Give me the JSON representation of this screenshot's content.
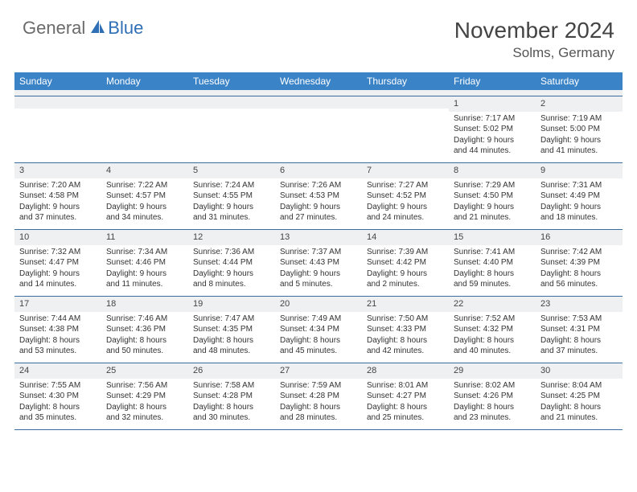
{
  "brand": {
    "general": "General",
    "blue": "Blue"
  },
  "title": "November 2024",
  "location": "Solms, Germany",
  "dow": [
    "Sunday",
    "Monday",
    "Tuesday",
    "Wednesday",
    "Thursday",
    "Friday",
    "Saturday"
  ],
  "colors": {
    "header_bar": "#3b83c7",
    "row_border": "#3b6ea0",
    "daynum_bg": "#eef0f2",
    "logo_gray": "#6a6a6a",
    "logo_blue": "#2e6fb5"
  },
  "weeks": [
    [
      null,
      null,
      null,
      null,
      null,
      {
        "n": "1",
        "sr": "Sunrise: 7:17 AM",
        "ss": "Sunset: 5:02 PM",
        "d1": "Daylight: 9 hours",
        "d2": "and 44 minutes."
      },
      {
        "n": "2",
        "sr": "Sunrise: 7:19 AM",
        "ss": "Sunset: 5:00 PM",
        "d1": "Daylight: 9 hours",
        "d2": "and 41 minutes."
      }
    ],
    [
      {
        "n": "3",
        "sr": "Sunrise: 7:20 AM",
        "ss": "Sunset: 4:58 PM",
        "d1": "Daylight: 9 hours",
        "d2": "and 37 minutes."
      },
      {
        "n": "4",
        "sr": "Sunrise: 7:22 AM",
        "ss": "Sunset: 4:57 PM",
        "d1": "Daylight: 9 hours",
        "d2": "and 34 minutes."
      },
      {
        "n": "5",
        "sr": "Sunrise: 7:24 AM",
        "ss": "Sunset: 4:55 PM",
        "d1": "Daylight: 9 hours",
        "d2": "and 31 minutes."
      },
      {
        "n": "6",
        "sr": "Sunrise: 7:26 AM",
        "ss": "Sunset: 4:53 PM",
        "d1": "Daylight: 9 hours",
        "d2": "and 27 minutes."
      },
      {
        "n": "7",
        "sr": "Sunrise: 7:27 AM",
        "ss": "Sunset: 4:52 PM",
        "d1": "Daylight: 9 hours",
        "d2": "and 24 minutes."
      },
      {
        "n": "8",
        "sr": "Sunrise: 7:29 AM",
        "ss": "Sunset: 4:50 PM",
        "d1": "Daylight: 9 hours",
        "d2": "and 21 minutes."
      },
      {
        "n": "9",
        "sr": "Sunrise: 7:31 AM",
        "ss": "Sunset: 4:49 PM",
        "d1": "Daylight: 9 hours",
        "d2": "and 18 minutes."
      }
    ],
    [
      {
        "n": "10",
        "sr": "Sunrise: 7:32 AM",
        "ss": "Sunset: 4:47 PM",
        "d1": "Daylight: 9 hours",
        "d2": "and 14 minutes."
      },
      {
        "n": "11",
        "sr": "Sunrise: 7:34 AM",
        "ss": "Sunset: 4:46 PM",
        "d1": "Daylight: 9 hours",
        "d2": "and 11 minutes."
      },
      {
        "n": "12",
        "sr": "Sunrise: 7:36 AM",
        "ss": "Sunset: 4:44 PM",
        "d1": "Daylight: 9 hours",
        "d2": "and 8 minutes."
      },
      {
        "n": "13",
        "sr": "Sunrise: 7:37 AM",
        "ss": "Sunset: 4:43 PM",
        "d1": "Daylight: 9 hours",
        "d2": "and 5 minutes."
      },
      {
        "n": "14",
        "sr": "Sunrise: 7:39 AM",
        "ss": "Sunset: 4:42 PM",
        "d1": "Daylight: 9 hours",
        "d2": "and 2 minutes."
      },
      {
        "n": "15",
        "sr": "Sunrise: 7:41 AM",
        "ss": "Sunset: 4:40 PM",
        "d1": "Daylight: 8 hours",
        "d2": "and 59 minutes."
      },
      {
        "n": "16",
        "sr": "Sunrise: 7:42 AM",
        "ss": "Sunset: 4:39 PM",
        "d1": "Daylight: 8 hours",
        "d2": "and 56 minutes."
      }
    ],
    [
      {
        "n": "17",
        "sr": "Sunrise: 7:44 AM",
        "ss": "Sunset: 4:38 PM",
        "d1": "Daylight: 8 hours",
        "d2": "and 53 minutes."
      },
      {
        "n": "18",
        "sr": "Sunrise: 7:46 AM",
        "ss": "Sunset: 4:36 PM",
        "d1": "Daylight: 8 hours",
        "d2": "and 50 minutes."
      },
      {
        "n": "19",
        "sr": "Sunrise: 7:47 AM",
        "ss": "Sunset: 4:35 PM",
        "d1": "Daylight: 8 hours",
        "d2": "and 48 minutes."
      },
      {
        "n": "20",
        "sr": "Sunrise: 7:49 AM",
        "ss": "Sunset: 4:34 PM",
        "d1": "Daylight: 8 hours",
        "d2": "and 45 minutes."
      },
      {
        "n": "21",
        "sr": "Sunrise: 7:50 AM",
        "ss": "Sunset: 4:33 PM",
        "d1": "Daylight: 8 hours",
        "d2": "and 42 minutes."
      },
      {
        "n": "22",
        "sr": "Sunrise: 7:52 AM",
        "ss": "Sunset: 4:32 PM",
        "d1": "Daylight: 8 hours",
        "d2": "and 40 minutes."
      },
      {
        "n": "23",
        "sr": "Sunrise: 7:53 AM",
        "ss": "Sunset: 4:31 PM",
        "d1": "Daylight: 8 hours",
        "d2": "and 37 minutes."
      }
    ],
    [
      {
        "n": "24",
        "sr": "Sunrise: 7:55 AM",
        "ss": "Sunset: 4:30 PM",
        "d1": "Daylight: 8 hours",
        "d2": "and 35 minutes."
      },
      {
        "n": "25",
        "sr": "Sunrise: 7:56 AM",
        "ss": "Sunset: 4:29 PM",
        "d1": "Daylight: 8 hours",
        "d2": "and 32 minutes."
      },
      {
        "n": "26",
        "sr": "Sunrise: 7:58 AM",
        "ss": "Sunset: 4:28 PM",
        "d1": "Daylight: 8 hours",
        "d2": "and 30 minutes."
      },
      {
        "n": "27",
        "sr": "Sunrise: 7:59 AM",
        "ss": "Sunset: 4:28 PM",
        "d1": "Daylight: 8 hours",
        "d2": "and 28 minutes."
      },
      {
        "n": "28",
        "sr": "Sunrise: 8:01 AM",
        "ss": "Sunset: 4:27 PM",
        "d1": "Daylight: 8 hours",
        "d2": "and 25 minutes."
      },
      {
        "n": "29",
        "sr": "Sunrise: 8:02 AM",
        "ss": "Sunset: 4:26 PM",
        "d1": "Daylight: 8 hours",
        "d2": "and 23 minutes."
      },
      {
        "n": "30",
        "sr": "Sunrise: 8:04 AM",
        "ss": "Sunset: 4:25 PM",
        "d1": "Daylight: 8 hours",
        "d2": "and 21 minutes."
      }
    ]
  ]
}
